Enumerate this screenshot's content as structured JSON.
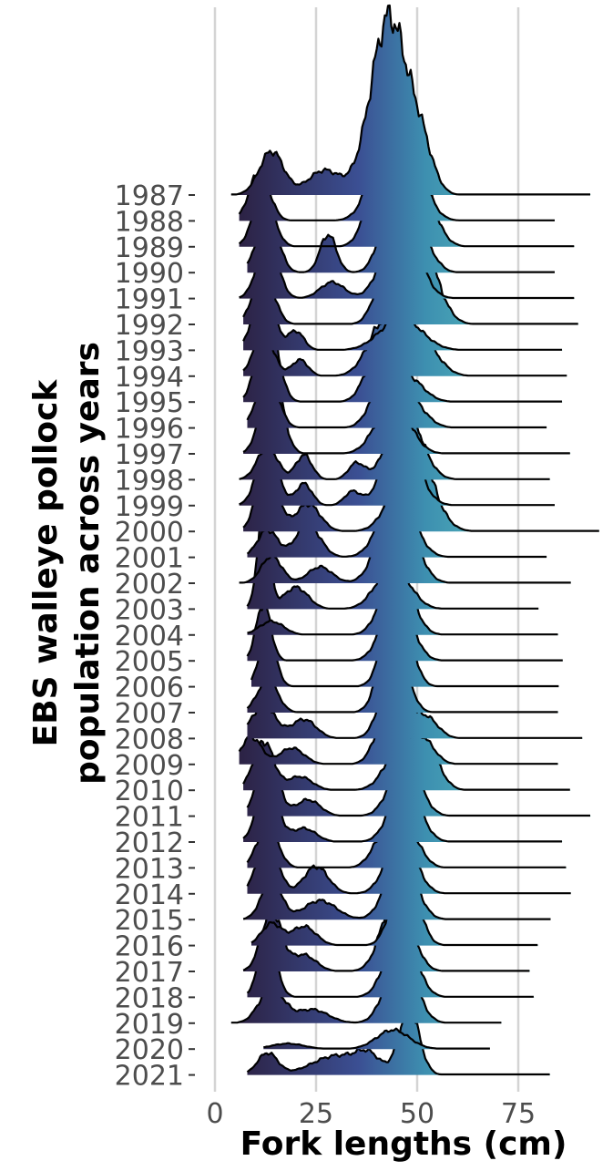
{
  "chart_data": {
    "type": "ridgeline",
    "ylabel_lines": [
      "EBS walleye pollock",
      "population across years"
    ],
    "xlabel": "Fork lengths (cm)",
    "xlim": [
      -8,
      100
    ],
    "x_ticks": [
      0,
      25,
      50,
      75
    ],
    "x_tick_labels": [
      "0",
      "25",
      "50",
      "75"
    ],
    "grid": "vertical major only",
    "fill_gradient": [
      "#2b1f3f",
      "#3b4f93",
      "#3d8fb0",
      "#5cc9c0"
    ],
    "categories": [
      "1987",
      "1988",
      "1989",
      "1990",
      "1991",
      "1992",
      "1993",
      "1994",
      "1995",
      "1996",
      "1997",
      "1998",
      "1999",
      "2000",
      "2001",
      "2002",
      "2003",
      "2004",
      "2005",
      "2006",
      "2007",
      "2008",
      "2009",
      "2010",
      "2011",
      "2012",
      "2013",
      "2014",
      "2015",
      "2016",
      "2017",
      "2018",
      "2019",
      "2020",
      "2021"
    ],
    "series": [
      {
        "year": "1987",
        "range": [
          4,
          93
        ],
        "peaks": [
          [
            14,
            1.6,
            3
          ],
          [
            27,
            0.9,
            4
          ],
          [
            43,
            6.5,
            4.5
          ],
          [
            51,
            1.5,
            3
          ]
        ]
      },
      {
        "year": "1988",
        "range": [
          6,
          84
        ],
        "peaks": [
          [
            11,
            1.8,
            2.5
          ],
          [
            45,
            5.5,
            4.5
          ]
        ]
      },
      {
        "year": "1989",
        "range": [
          6,
          89
        ],
        "peaks": [
          [
            12,
            2.0,
            2.5
          ],
          [
            40,
            2.0,
            3
          ],
          [
            49,
            3.5,
            4
          ]
        ]
      },
      {
        "year": "1990",
        "range": [
          8,
          84
        ],
        "peaks": [
          [
            13,
            2.3,
            2.5
          ],
          [
            28,
            1.4,
            2
          ],
          [
            44,
            2.7,
            3
          ],
          [
            51,
            1.2,
            3
          ]
        ]
      },
      {
        "year": "1991",
        "range": [
          6,
          89
        ],
        "peaks": [
          [
            13,
            2.2,
            2.5
          ],
          [
            29,
            0.6,
            3
          ],
          [
            46,
            3.3,
            4
          ]
        ]
      },
      {
        "year": "1992",
        "range": [
          7,
          90
        ],
        "peaks": [
          [
            12,
            2.0,
            2.5
          ],
          [
            43,
            2.3,
            3
          ],
          [
            51,
            2.8,
            4
          ]
        ]
      },
      {
        "year": "1993",
        "range": [
          7,
          86
        ],
        "peaks": [
          [
            12,
            2.4,
            2.5
          ],
          [
            20,
            0.7,
            2
          ],
          [
            46,
            1.2,
            5
          ]
        ]
      },
      {
        "year": "1994",
        "range": [
          7,
          87
        ],
        "peaks": [
          [
            12,
            1.5,
            2.5
          ],
          [
            21,
            0.6,
            2
          ],
          [
            42,
            2.0,
            4
          ],
          [
            51,
            1.3,
            4
          ]
        ]
      },
      {
        "year": "1995",
        "range": [
          7,
          86
        ],
        "peaks": [
          [
            13,
            3.2,
            2.5
          ],
          [
            40,
            1.6,
            3
          ],
          [
            47,
            1.0,
            4
          ]
        ]
      },
      {
        "year": "1996",
        "range": [
          8,
          82
        ],
        "peaks": [
          [
            13,
            2.1,
            2.5
          ],
          [
            41,
            1.2,
            3
          ],
          [
            47,
            1.3,
            4
          ]
        ]
      },
      {
        "year": "1997",
        "range": [
          7,
          88
        ],
        "peaks": [
          [
            14,
            3.3,
            2.5
          ],
          [
            44,
            2.0,
            4
          ]
        ]
      },
      {
        "year": "1998",
        "range": [
          6,
          83
        ],
        "peaks": [
          [
            13,
            1.2,
            2.5
          ],
          [
            22,
            0.9,
            2
          ],
          [
            35,
            0.6,
            2
          ],
          [
            47,
            2.6,
            4
          ]
        ]
      },
      {
        "year": "1999",
        "range": [
          6,
          84
        ],
        "peaks": [
          [
            13,
            2.3,
            2.5
          ],
          [
            22,
            0.8,
            2
          ],
          [
            34,
            0.5,
            2
          ],
          [
            46,
            2.7,
            4
          ]
        ]
      },
      {
        "year": "2000",
        "range": [
          7,
          95
        ],
        "peaks": [
          [
            13,
            2.6,
            2.5
          ],
          [
            23,
            1.0,
            3
          ],
          [
            49,
            3.3,
            4.5
          ]
        ]
      },
      {
        "year": "2001",
        "range": [
          8,
          82
        ],
        "peaks": [
          [
            13,
            1.0,
            2.5
          ],
          [
            23,
            1.2,
            3
          ],
          [
            45,
            2.5,
            4
          ]
        ]
      },
      {
        "year": "2002",
        "range": [
          6,
          88
        ],
        "peaks": [
          [
            14,
            1.0,
            2.5
          ],
          [
            26,
            0.6,
            3
          ],
          [
            45,
            3.5,
            4
          ]
        ]
      },
      {
        "year": "2003",
        "range": [
          8,
          80
        ],
        "peaks": [
          [
            12,
            3.5,
            1.5
          ],
          [
            20,
            0.8,
            3
          ],
          [
            44,
            1.6,
            4
          ]
        ]
      },
      {
        "year": "2004",
        "range": [
          8,
          85
        ],
        "peaks": [
          [
            14,
            0.5,
            3
          ],
          [
            45,
            2.7,
            3.5
          ]
        ]
      },
      {
        "year": "2005",
        "range": [
          8,
          86
        ],
        "peaks": [
          [
            12,
            2.1,
            1.8
          ],
          [
            45,
            2.5,
            3.5
          ]
        ]
      },
      {
        "year": "2006",
        "range": [
          9,
          85
        ],
        "peaks": [
          [
            13,
            1.9,
            2
          ],
          [
            45,
            3.8,
            3
          ]
        ]
      },
      {
        "year": "2007",
        "range": [
          8,
          85
        ],
        "peaks": [
          [
            13,
            1.2,
            2.5
          ],
          [
            44,
            3.5,
            3
          ]
        ]
      },
      {
        "year": "2008",
        "range": [
          8,
          91
        ],
        "peaks": [
          [
            12,
            1.2,
            3
          ],
          [
            22,
            0.7,
            3
          ],
          [
            44,
            2.5,
            3
          ],
          [
            52,
            0.8,
            3
          ]
        ]
      },
      {
        "year": "2009",
        "range": [
          6,
          85
        ],
        "peaks": [
          [
            9,
            1.0,
            2.5
          ],
          [
            19,
            0.6,
            3
          ],
          [
            43,
            2.0,
            3
          ],
          [
            51,
            1.0,
            3
          ]
        ]
      },
      {
        "year": "2010",
        "range": [
          7,
          88
        ],
        "peaks": [
          [
            12,
            1.8,
            2.5
          ],
          [
            21,
            0.5,
            3
          ],
          [
            47,
            2.0,
            4
          ],
          [
            53,
            1.0,
            3
          ]
        ]
      },
      {
        "year": "2011",
        "range": [
          8,
          93
        ],
        "peaks": [
          [
            13,
            2.4,
            2.5
          ],
          [
            23,
            0.6,
            3
          ],
          [
            47,
            2.2,
            3.5
          ]
        ]
      },
      {
        "year": "2012",
        "range": [
          7,
          86
        ],
        "peaks": [
          [
            13,
            2.3,
            2.5
          ],
          [
            22,
            0.5,
            3
          ],
          [
            47,
            2.3,
            3.5
          ]
        ]
      },
      {
        "year": "2013",
        "range": [
          8,
          87
        ],
        "peaks": [
          [
            13,
            1.6,
            2.5
          ],
          [
            42,
            1.2,
            3
          ],
          [
            48,
            1.2,
            3
          ]
        ]
      },
      {
        "year": "2014",
        "range": [
          8,
          88
        ],
        "peaks": [
          [
            13,
            2.1,
            2.5
          ],
          [
            25,
            1.0,
            3
          ],
          [
            46,
            2.2,
            3.5
          ]
        ]
      },
      {
        "year": "2015",
        "range": [
          7,
          83
        ],
        "peaks": [
          [
            14,
            1.4,
            2.5
          ],
          [
            26,
            0.7,
            4
          ],
          [
            46,
            2.5,
            3.5
          ]
        ]
      },
      {
        "year": "2016",
        "range": [
          9,
          80
        ],
        "peaks": [
          [
            14,
            0.8,
            2.5
          ],
          [
            22,
            0.7,
            3
          ],
          [
            47,
            3.2,
            3
          ]
        ]
      },
      {
        "year": "2017",
        "range": [
          7,
          78
        ],
        "peaks": [
          [
            14,
            2.2,
            2.5
          ],
          [
            22,
            0.6,
            3
          ],
          [
            45,
            3.0,
            3.5
          ]
        ]
      },
      {
        "year": "2018",
        "range": [
          8,
          79
        ],
        "peaks": [
          [
            13,
            2.1,
            2.2
          ],
          [
            46,
            2.6,
            3.5
          ]
        ]
      },
      {
        "year": "2019",
        "range": [
          4,
          71
        ],
        "peaks": [
          [
            14,
            1.3,
            3
          ],
          [
            24,
            0.5,
            4
          ],
          [
            46,
            2.7,
            3.5
          ]
        ]
      },
      {
        "year": "2020",
        "range": [
          12,
          68
        ],
        "peaks": [
          [
            18,
            0.2,
            4
          ],
          [
            44,
            0.7,
            4
          ]
        ]
      },
      {
        "year": "2021",
        "range": [
          8,
          83
        ],
        "peaks": [
          [
            13,
            0.8,
            2.5
          ],
          [
            30,
            0.7,
            6
          ],
          [
            38,
            0.6,
            3
          ],
          [
            48,
            2.4,
            2.5
          ]
        ]
      }
    ]
  }
}
